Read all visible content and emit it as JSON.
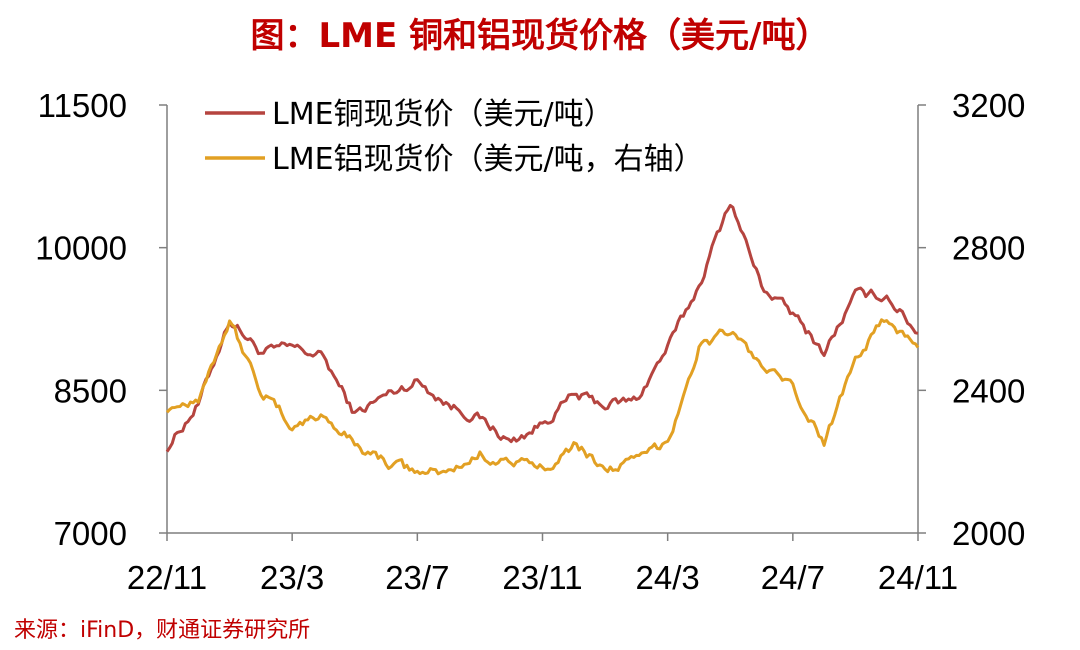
{
  "title": "图：LME 铜和铝现货价格（美元/吨）",
  "source": "来源：iFinD，财通证券研究所",
  "chart_data": {
    "type": "line",
    "title": "图：LME 铜和铝现货价格（美元/吨）",
    "x_ticks": [
      "22/11",
      "23/3",
      "23/7",
      "23/11",
      "24/3",
      "24/7",
      "24/11"
    ],
    "x_range": [
      "2022-11",
      "2024-11"
    ],
    "y_left": {
      "ticks": [
        "7000",
        "8500",
        "10000",
        "11500"
      ],
      "range": [
        7000,
        11500
      ]
    },
    "y_right": {
      "ticks": [
        "2000",
        "2400",
        "2800",
        "3200"
      ],
      "range": [
        2000,
        3200
      ]
    },
    "grid": false,
    "legend_position": "top-left",
    "series": [
      {
        "name": "LME铜现货价（美元/吨）",
        "axis": "left",
        "color": "#b5443f",
        "months": [
          "2022-11",
          "2022-12",
          "2023-01",
          "2023-02",
          "2023-03",
          "2023-04",
          "2023-05",
          "2023-06",
          "2023-07",
          "2023-08",
          "2023-09",
          "2023-10",
          "2023-11",
          "2023-12",
          "2024-01",
          "2024-02",
          "2024-03",
          "2024-04",
          "2024-05",
          "2024-06",
          "2024-07",
          "2024-08",
          "2024-09",
          "2024-10",
          "2024-11"
        ],
        "values": [
          7900,
          8350,
          9250,
          8900,
          8950,
          8850,
          8250,
          8450,
          8600,
          8350,
          8200,
          7950,
          8150,
          8450,
          8350,
          8400,
          8950,
          9600,
          10500,
          9600,
          9300,
          8900,
          9500,
          9500,
          9100
        ]
      },
      {
        "name": "LME铝现货价（美元/吨，右轴）",
        "axis": "right",
        "color": "#e2a023",
        "months": [
          "2022-11",
          "2022-12",
          "2023-01",
          "2023-02",
          "2023-03",
          "2023-04",
          "2023-05",
          "2023-06",
          "2023-07",
          "2023-08",
          "2023-09",
          "2023-10",
          "2023-11",
          "2023-12",
          "2024-01",
          "2024-02",
          "2024-03",
          "2024-04",
          "2024-05",
          "2024-06",
          "2024-07",
          "2024-08",
          "2024-09",
          "2024-10",
          "2024-11"
        ],
        "values": [
          2350,
          2380,
          2600,
          2400,
          2300,
          2330,
          2250,
          2200,
          2170,
          2170,
          2220,
          2200,
          2180,
          2250,
          2180,
          2200,
          2260,
          2520,
          2570,
          2470,
          2400,
          2250,
          2500,
          2600,
          2520
        ]
      }
    ]
  }
}
